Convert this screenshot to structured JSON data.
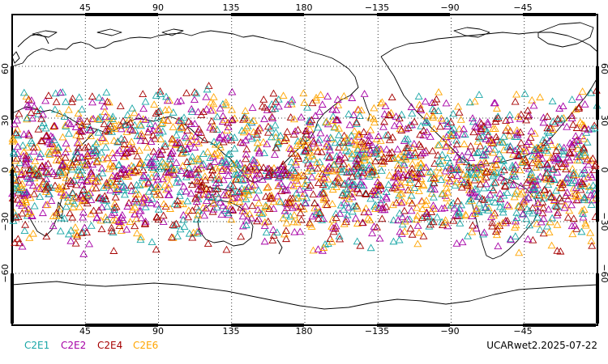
{
  "map": {
    "projection": "equirectangular",
    "lon_range": [
      0,
      360
    ],
    "lat_range": [
      -90,
      90
    ],
    "top_tick_labels": [
      "45",
      "90",
      "135",
      "180",
      "−135",
      "−90",
      "−45"
    ],
    "bottom_tick_labels": [
      "45",
      "90",
      "135",
      "180",
      "−135",
      "−90",
      "−45"
    ],
    "left_tick_labels": [
      "60",
      "30",
      "0",
      "−30",
      "−60"
    ],
    "right_tick_labels": [
      "60",
      "30",
      "0",
      "−30",
      "−60"
    ],
    "grid": true,
    "coastlines": true
  },
  "legend": {
    "items": [
      {
        "label": "C2E1",
        "color": "#19a6a6"
      },
      {
        "label": "C2E2",
        "color": "#a600a6"
      },
      {
        "label": "C2E4",
        "color": "#a60000"
      },
      {
        "label": "C2E6",
        "color": "#ffa500"
      }
    ]
  },
  "stamp": {
    "text": "UCARwet2.2025-07-22"
  },
  "occultations": {
    "marker": "triangle",
    "lat_band": [
      -50,
      50
    ],
    "density": "very dense, global coverage between about 50S and 50N"
  }
}
